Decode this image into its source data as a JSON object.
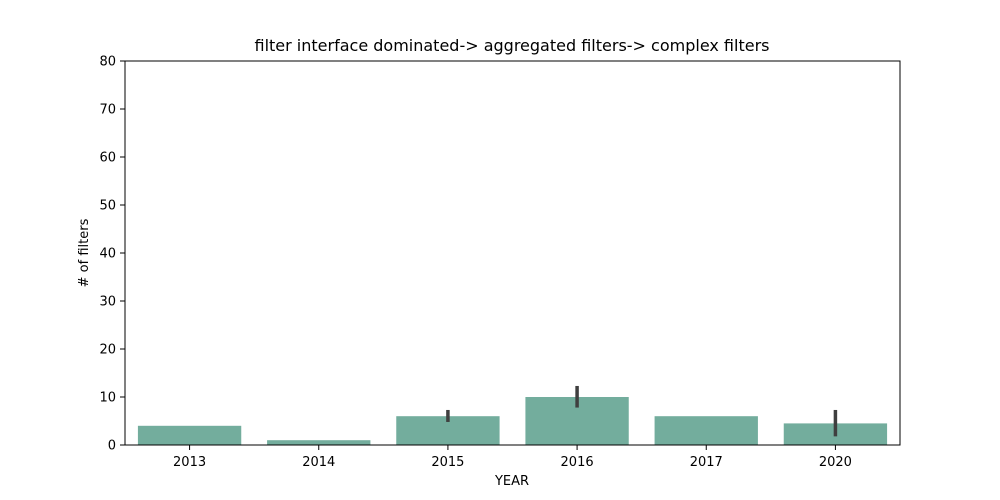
{
  "chart_data": {
    "type": "bar",
    "title": "filter interface dominated-> aggregated filters-> complex filters",
    "xlabel": "YEAR",
    "ylabel": "# of filters",
    "categories": [
      "2013",
      "2014",
      "2015",
      "2016",
      "2017",
      "2020"
    ],
    "values": [
      4,
      1,
      6,
      10,
      6,
      4.5
    ],
    "error_bars": [
      null,
      null,
      [
        4.8,
        7.3
      ],
      [
        7.8,
        12.3
      ],
      null,
      [
        1.8,
        7.3
      ]
    ],
    "ylim": [
      0,
      80
    ],
    "yticks": [
      0,
      10,
      20,
      30,
      40,
      50,
      60,
      70,
      80
    ],
    "grid": false,
    "legend": "none",
    "bar_color": "#73ad9d",
    "errorbar_color": "#3f3f3f"
  }
}
